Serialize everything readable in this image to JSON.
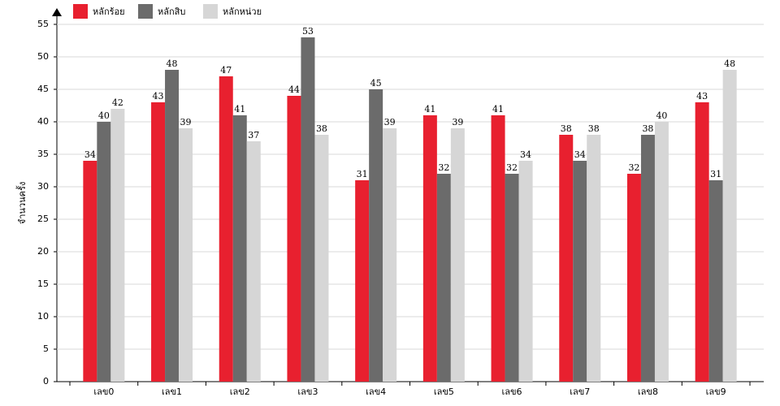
{
  "chart_data": {
    "type": "bar",
    "y_label": "จำนวนครั้ง",
    "categories": [
      "เลข0",
      "เลข1",
      "เลข2",
      "เลข3",
      "เลข4",
      "เลข5",
      "เลข6",
      "เลข7",
      "เลข8",
      "เลข9"
    ],
    "series": [
      {
        "name": "หลักร้อย",
        "color": "#e8202f",
        "values": [
          34,
          43,
          47,
          44,
          31,
          41,
          41,
          38,
          32,
          43
        ]
      },
      {
        "name": "หลักสิบ",
        "color": "#6b6b6b",
        "values": [
          40,
          48,
          41,
          53,
          45,
          32,
          32,
          34,
          38,
          31
        ]
      },
      {
        "name": "หลักหน่วย",
        "color": "#d6d6d6",
        "values": [
          42,
          39,
          37,
          38,
          39,
          39,
          34,
          38,
          40,
          48
        ]
      }
    ],
    "ylim": [
      0,
      55
    ],
    "yticks": [
      0,
      5,
      10,
      15,
      20,
      25,
      30,
      35,
      40,
      45,
      50,
      55
    ],
    "grid": true
  }
}
